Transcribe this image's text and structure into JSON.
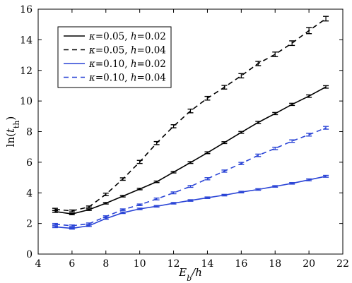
{
  "chart_data": {
    "type": "line",
    "title": "",
    "xlabel": "E_b/h",
    "ylabel": "ln(t_th)",
    "xlim": [
      4,
      22
    ],
    "ylim": [
      0,
      16
    ],
    "xticks": [
      4,
      6,
      8,
      10,
      12,
      14,
      16,
      18,
      20,
      22
    ],
    "yticks": [
      0,
      2,
      4,
      6,
      8,
      10,
      12,
      14,
      16
    ],
    "grid": false,
    "legend_position": "top-left",
    "x": [
      5,
      6,
      7,
      8,
      9,
      10,
      11,
      12,
      13,
      14,
      15,
      16,
      17,
      18,
      19,
      20,
      21
    ],
    "series": [
      {
        "name": "κ=0.05, h=0.02",
        "color": "#000000",
        "dash": "solid",
        "values": [
          2.78,
          2.62,
          2.9,
          3.32,
          3.78,
          4.25,
          4.72,
          5.35,
          5.98,
          6.62,
          7.28,
          7.95,
          8.6,
          9.18,
          9.78,
          10.32,
          10.92
        ],
        "errors": [
          0.06,
          0.05,
          0.05,
          0.05,
          0.05,
          0.05,
          0.05,
          0.05,
          0.06,
          0.06,
          0.06,
          0.06,
          0.07,
          0.07,
          0.07,
          0.08,
          0.08
        ]
      },
      {
        "name": "κ=0.05, h=0.04",
        "color": "#000000",
        "dash": "dashed",
        "values": [
          2.92,
          2.82,
          3.08,
          3.9,
          4.9,
          6.02,
          7.25,
          8.35,
          9.35,
          10.18,
          10.9,
          11.65,
          12.45,
          13.05,
          13.78,
          14.6,
          15.38
        ],
        "errors": [
          0.07,
          0.06,
          0.06,
          0.08,
          0.08,
          0.1,
          0.1,
          0.1,
          0.12,
          0.12,
          0.12,
          0.14,
          0.14,
          0.15,
          0.15,
          0.2,
          0.15
        ]
      },
      {
        "name": "κ=0.10, h=0.02",
        "color": "#2a44d6",
        "dash": "solid",
        "values": [
          1.78,
          1.68,
          1.85,
          2.32,
          2.7,
          2.95,
          3.12,
          3.32,
          3.5,
          3.68,
          3.85,
          4.05,
          4.22,
          4.42,
          4.62,
          4.85,
          5.08
        ],
        "errors": [
          0.05,
          0.05,
          0.05,
          0.05,
          0.05,
          0.05,
          0.05,
          0.05,
          0.05,
          0.05,
          0.05,
          0.05,
          0.05,
          0.05,
          0.05,
          0.06,
          0.06
        ]
      },
      {
        "name": "κ=0.10, h=0.04",
        "color": "#2a44d6",
        "dash": "dashed",
        "values": [
          1.95,
          1.85,
          1.98,
          2.45,
          2.9,
          3.22,
          3.6,
          4.0,
          4.42,
          4.92,
          5.42,
          5.92,
          6.45,
          6.9,
          7.38,
          7.8,
          8.25
        ],
        "errors": [
          0.05,
          0.05,
          0.05,
          0.05,
          0.05,
          0.05,
          0.06,
          0.06,
          0.06,
          0.07,
          0.07,
          0.07,
          0.08,
          0.08,
          0.08,
          0.09,
          0.09
        ]
      }
    ]
  }
}
